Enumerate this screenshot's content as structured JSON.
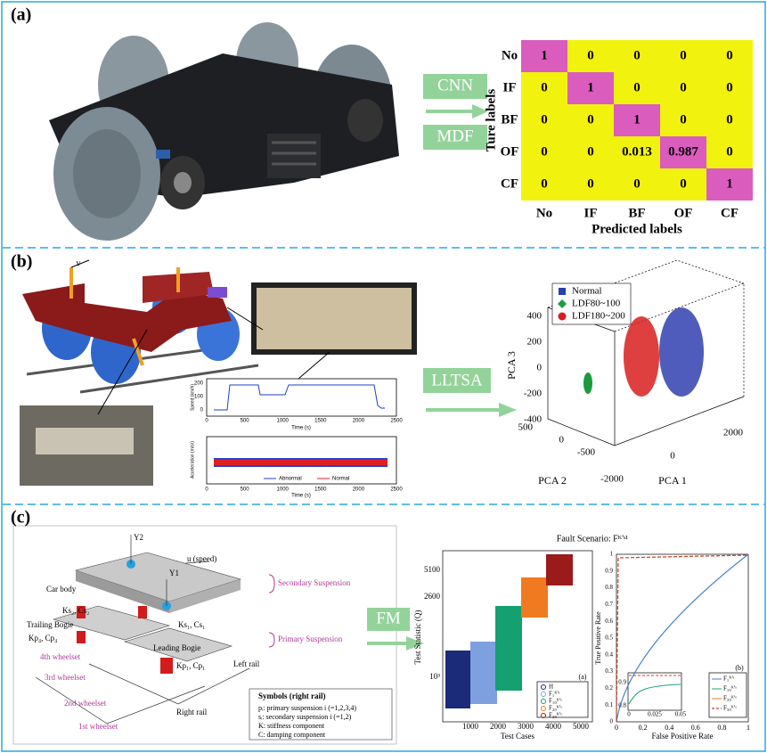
{
  "panel_a": {
    "label": "(a)",
    "method_labels": [
      "CNN",
      "MDF"
    ],
    "confusion_matrix": {
      "row_labels": [
        "No",
        "IF",
        "BF",
        "OF",
        "CF"
      ],
      "col_labels": [
        "No",
        "IF",
        "BF",
        "OF",
        "CF"
      ],
      "cells": [
        [
          1,
          0,
          0,
          0,
          0
        ],
        [
          0,
          1,
          0,
          0,
          0
        ],
        [
          0,
          0,
          1,
          0,
          0
        ],
        [
          0,
          0,
          0.013,
          0.987,
          0
        ],
        [
          0,
          0,
          0,
          0,
          1
        ]
      ],
      "y_label": "Ture labels",
      "x_label": "Predicted labels"
    }
  },
  "panel_b": {
    "label": "(b)",
    "velocity_label": "v",
    "method_label": "LLTSA",
    "speed_plot": {
      "y_label": "Speed (km/h)",
      "x_label": "Time (s)",
      "xticks": [
        0,
        500,
        1000,
        1500,
        2000,
        2500
      ],
      "yticks": [
        200,
        100,
        0
      ]
    },
    "accel_plot": {
      "y_label": "Acceleration (m/s²)",
      "x_label": "Time (s)",
      "xticks": [
        0,
        500,
        1000,
        1500,
        2000,
        2500
      ],
      "legend": [
        "Abnormal",
        "Normal"
      ]
    },
    "pca_plot": {
      "legend": [
        "Normal",
        "LDF80~100",
        "LDF180~200"
      ],
      "z_label": "PCA 3",
      "zticks": [
        400,
        200,
        0,
        -200,
        -400
      ],
      "y_label": "PCA 2",
      "yticks": [
        500,
        0,
        -500
      ],
      "x_label": "PCA 1",
      "xticks": [
        -2000,
        0,
        2000
      ]
    }
  },
  "panel_c": {
    "label": "(c)",
    "method_label": "FM",
    "diagram": {
      "labels": [
        "Y2",
        "u (speed)",
        "Car body",
        "Y1",
        "Ks₂, Cs₂",
        "Trailing Bogie",
        "Kp₄, Cp₄",
        "Ks₁, Cs₁",
        "Leading Bogie",
        "4th wheelset",
        "3rd wheelset",
        "Kp₁, Cp₁",
        "Left rail",
        "2nd wheelset",
        "1st wheelset",
        "Right rail",
        "Secondary Suspension",
        "Primary Suspension"
      ],
      "symbols_title": "Symbols (right rail)",
      "symbols": [
        "pᵢ: primary suspension i (=1,2,3,4)",
        "sᵢ: secondary suspension i (=1,2)",
        "K: stiffness component",
        "C: damping component"
      ]
    },
    "fault_title": "Fault Scenario: Fᴷ'ˢ¹",
    "q_plot": {
      "y_label": "Test Statistic (Q)",
      "yticks": [
        "5100",
        "2600",
        "10³"
      ],
      "x_label": "Test Cases",
      "xticks": [
        1000,
        2000,
        3000,
        4000,
        5000
      ],
      "legend": [
        "H",
        "F₁ᴷ'ˢ",
        "F₁₀ᴷ'ˢ",
        "F₂₀ᴷ'ˢ",
        "F₃₀ᴷ'ˢ"
      ],
      "tag": "(a)"
    },
    "roc_plot": {
      "y_label": "True Positive Rate",
      "yticks": [
        1,
        0.9,
        0.8,
        0.7,
        0.6,
        0.5,
        0.4,
        0.3,
        0.2,
        0.1,
        0
      ],
      "x_label": "False Positive Rate",
      "xticks": [
        0,
        0.2,
        0.4,
        0.6,
        0.8,
        1
      ],
      "inset_yticks": [
        0.9,
        0.8
      ],
      "inset_xticks": [
        0,
        0.025,
        0.05
      ],
      "legend": [
        "F₁ᴷ'ˢ",
        "F₁₀ᴷ'ˢ",
        "F₂₀ᴷ'ˢ",
        "F₃₀ᴷ'ˢ"
      ],
      "tag": "(b)"
    }
  }
}
